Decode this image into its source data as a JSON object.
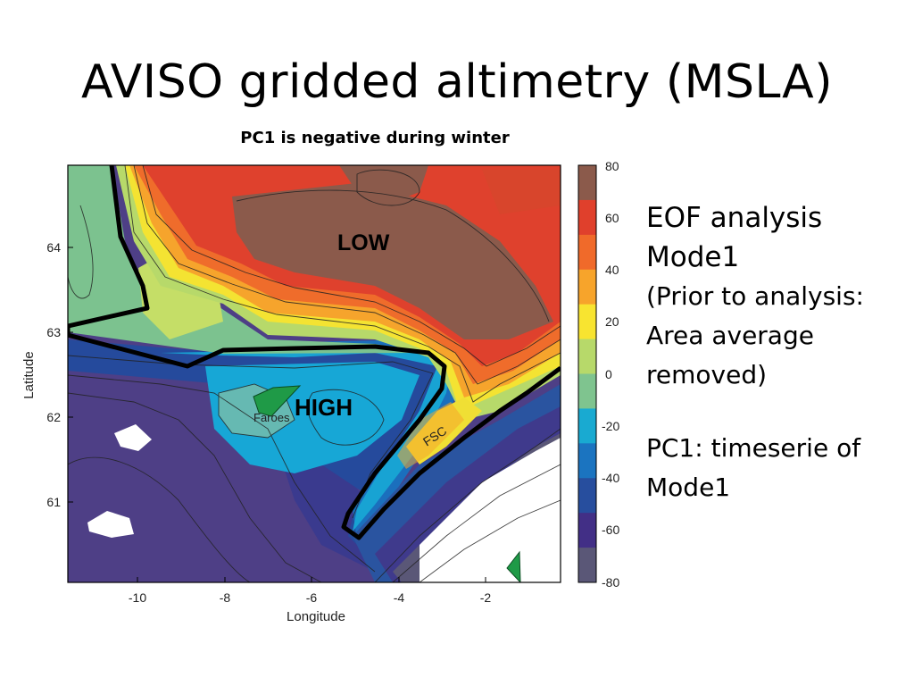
{
  "slide": {
    "title": "AVISO gridded altimetry (MSLA)"
  },
  "figure": {
    "title": "PC1 is negative during winter",
    "xlabel": "Longitude",
    "ylabel": "Latitude",
    "x_ticks": [
      "-10",
      "-8",
      "-6",
      "-4",
      "-2"
    ],
    "y_ticks": [
      "64",
      "63",
      "62",
      "61"
    ],
    "colorbar_ticks": [
      "80",
      "60",
      "40",
      "20",
      "0",
      "-20",
      "-40",
      "-60",
      "-80"
    ],
    "labels": {
      "low": "LOW",
      "high": "HIGH",
      "faroes": "Faroes",
      "fsc": "FSC"
    },
    "colorbar_colors": [
      "#8b5a4b",
      "#e0402c",
      "#f06a2a",
      "#f7a42b",
      "#f8e430",
      "#b7d96a",
      "#7fc48f",
      "#19aad1",
      "#1b74c0",
      "#274e9e",
      "#422f86",
      "#5a5777"
    ]
  },
  "bullets": {
    "line1": "EOF analysis",
    "line2": "Mode1",
    "line3": "(Prior to analysis:",
    "line4": "Area average",
    "line5": "removed)",
    "line6": "PC1: timeserie of",
    "line7": "Mode1"
  }
}
